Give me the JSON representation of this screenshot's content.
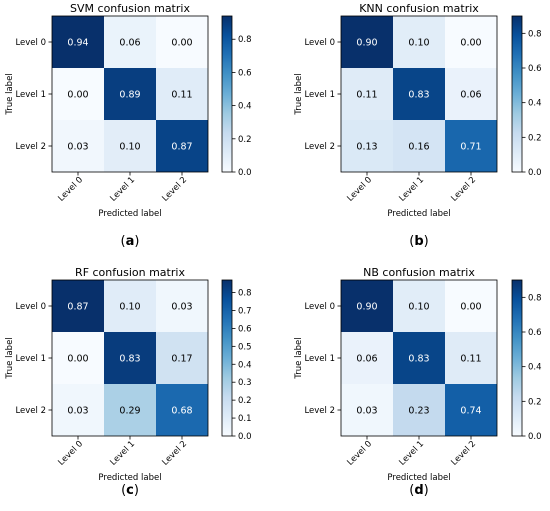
{
  "chart_data": [
    {
      "type": "heatmap",
      "title": "SVM confusion matrix",
      "xlabel": "Predicted label",
      "ylabel": "True label",
      "x_categories": [
        "Level 0",
        "Level 1",
        "Level 2"
      ],
      "y_categories": [
        "Level 0",
        "Level 1",
        "Level 2"
      ],
      "values": [
        [
          0.94,
          0.06,
          0.0
        ],
        [
          0.0,
          0.89,
          0.11
        ],
        [
          0.03,
          0.1,
          0.87
        ]
      ],
      "colorbar_ticks": [
        "0.0",
        "0.2",
        "0.4",
        "0.6",
        "0.8"
      ],
      "colorbar_range": [
        0,
        0.94
      ],
      "colormap": "Blues",
      "caption": {
        "open": "(",
        "letter": "a",
        "close": ")"
      }
    },
    {
      "type": "heatmap",
      "title": "KNN confusion matrix",
      "xlabel": "Predicted label",
      "ylabel": "True label",
      "x_categories": [
        "Level 0",
        "Level 1",
        "Level 2"
      ],
      "y_categories": [
        "Level 0",
        "Level 1",
        "Level 2"
      ],
      "values": [
        [
          0.9,
          0.1,
          0.0
        ],
        [
          0.11,
          0.83,
          0.06
        ],
        [
          0.13,
          0.16,
          0.71
        ]
      ],
      "colorbar_ticks": [
        "0.0",
        "0.2",
        "0.4",
        "0.6",
        "0.8"
      ],
      "colorbar_range": [
        0,
        0.9
      ],
      "colormap": "Blues",
      "caption": {
        "open": "(",
        "letter": "b",
        "close": ")"
      }
    },
    {
      "type": "heatmap",
      "title": "RF confusion matrix",
      "xlabel": "Predicted label",
      "ylabel": "True label",
      "x_categories": [
        "Level 0",
        "Level 1",
        "Level 2"
      ],
      "y_categories": [
        "Level 0",
        "Level 1",
        "Level 2"
      ],
      "values": [
        [
          0.87,
          0.1,
          0.03
        ],
        [
          0.0,
          0.83,
          0.17
        ],
        [
          0.03,
          0.29,
          0.68
        ]
      ],
      "colorbar_ticks": [
        "0.0",
        "0.1",
        "0.2",
        "0.3",
        "0.4",
        "0.5",
        "0.6",
        "0.7",
        "0.8"
      ],
      "colorbar_range": [
        0,
        0.87
      ],
      "colormap": "Blues",
      "caption": {
        "open": "(",
        "letter": "c",
        "close": ")"
      }
    },
    {
      "type": "heatmap",
      "title": "NB confusion matrix",
      "xlabel": "Predicted label",
      "ylabel": "True label",
      "x_categories": [
        "Level 0",
        "Level 1",
        "Level 2"
      ],
      "y_categories": [
        "Level 0",
        "Level 1",
        "Level 2"
      ],
      "values": [
        [
          0.9,
          0.1,
          0.0
        ],
        [
          0.06,
          0.83,
          0.11
        ],
        [
          0.03,
          0.23,
          0.74
        ]
      ],
      "colorbar_ticks": [
        "0.0",
        "0.2",
        "0.4",
        "0.6",
        "0.8"
      ],
      "colorbar_range": [
        0,
        0.9
      ],
      "colormap": "Blues",
      "caption": {
        "open": "(",
        "letter": "d",
        "close": ")"
      }
    }
  ]
}
